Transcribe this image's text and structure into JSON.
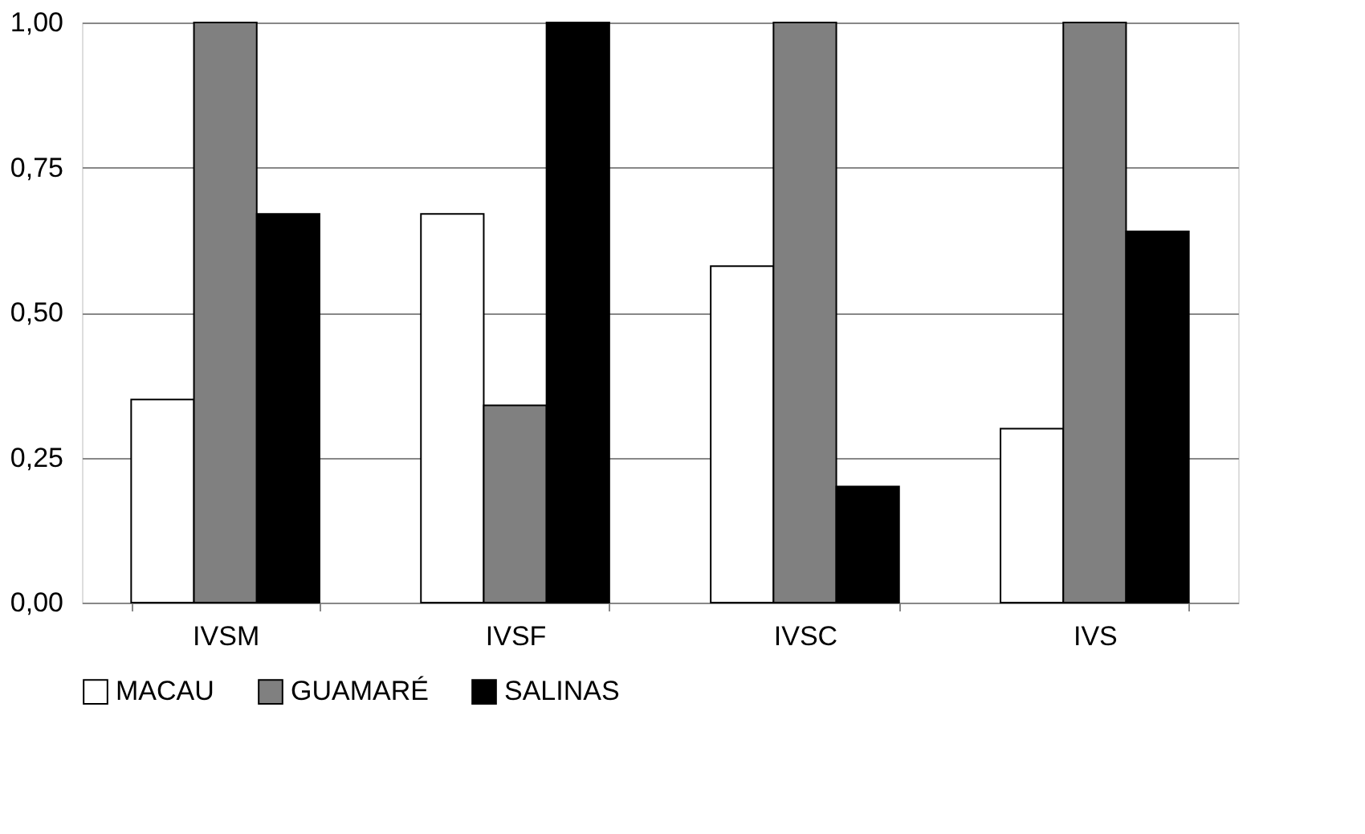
{
  "chart_data": {
    "type": "bar",
    "categories": [
      "IVSM",
      "IVSF",
      "IVSC",
      "IVS"
    ],
    "series": [
      {
        "name": "MACAU",
        "color": "#ffffff",
        "values": [
          0.35,
          0.67,
          0.58,
          0.3
        ]
      },
      {
        "name": "GUAMARÉ",
        "color": "#808080",
        "values": [
          1.0,
          0.34,
          1.0,
          1.0
        ]
      },
      {
        "name": "SALINAS",
        "color": "#000000",
        "values": [
          0.67,
          1.0,
          0.2,
          0.64
        ]
      }
    ],
    "ylim": [
      0,
      1
    ],
    "yticks": [
      {
        "value": 0,
        "label": "0,00"
      },
      {
        "value": 0.25,
        "label": "0,25"
      },
      {
        "value": 0.5,
        "label": "0,50"
      },
      {
        "value": 0.75,
        "label": "0,75"
      },
      {
        "value": 1,
        "label": "1,00"
      }
    ],
    "grid": "y",
    "legend": "bottom"
  }
}
